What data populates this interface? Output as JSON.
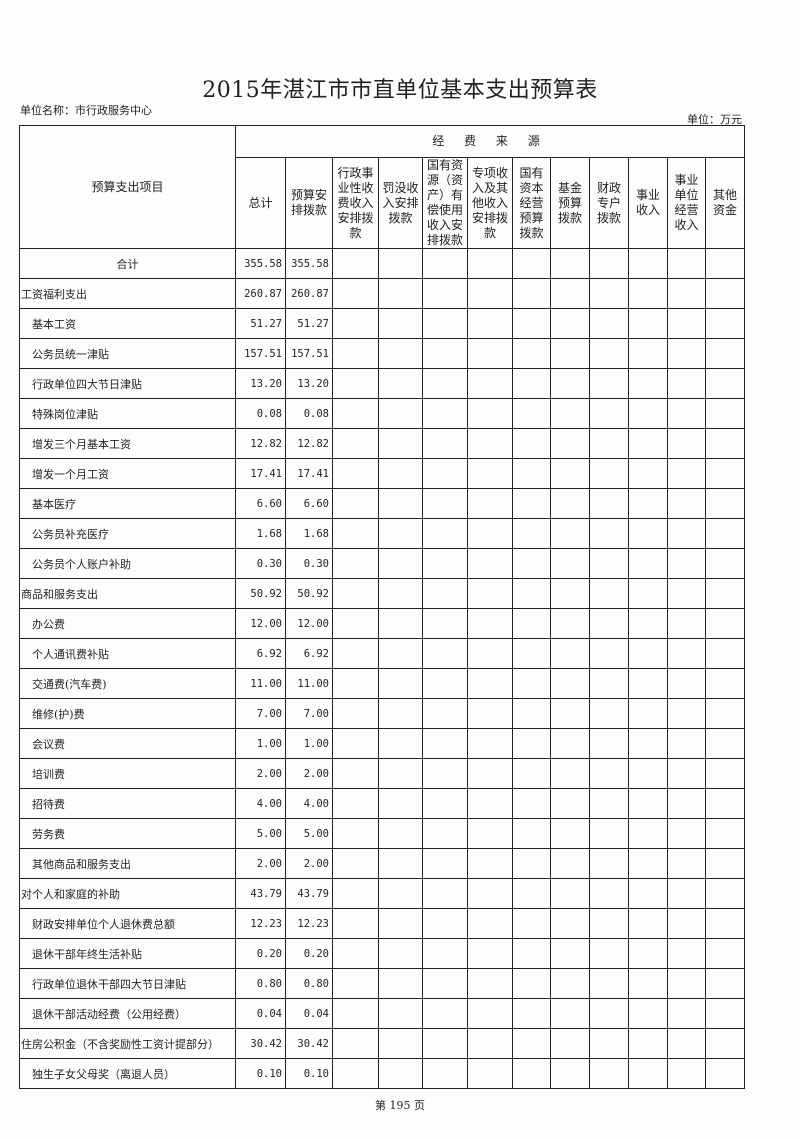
{
  "title": "2015年湛江市市直单位基本支出预算表",
  "unit_name": "单位名称：市行政服务中心",
  "unit": "单位：万元",
  "header": {
    "item": "预算支出项目",
    "group": "经 费 来 源",
    "columns": [
      "总计",
      "预算安排拨款",
      "行政事业性收费收入安排拨款",
      "罚没收入安排拨款",
      "国有资源（资产）有偿使用收入安排拨款",
      "专项收入及其他收入安排拨款",
      "国有资本经营预算拨款",
      "基金预算拨款",
      "财政专户拨款",
      "事业收入",
      "事业单位经营收入",
      "其他资金"
    ]
  },
  "rows": [
    {
      "name": "合计",
      "level": "center",
      "total": "355.58",
      "budget": "355.58"
    },
    {
      "name": "工资福利支出",
      "level": 0,
      "total": "260.87",
      "budget": "260.87"
    },
    {
      "name": "基本工资",
      "level": 1,
      "total": "51.27",
      "budget": "51.27"
    },
    {
      "name": "公务员统一津贴",
      "level": 1,
      "total": "157.51",
      "budget": "157.51"
    },
    {
      "name": "行政单位四大节日津贴",
      "level": 1,
      "total": "13.20",
      "budget": "13.20"
    },
    {
      "name": "特殊岗位津贴",
      "level": 1,
      "total": "0.08",
      "budget": "0.08"
    },
    {
      "name": "增发三个月基本工资",
      "level": 1,
      "total": "12.82",
      "budget": "12.82"
    },
    {
      "name": "增发一个月工资",
      "level": 1,
      "total": "17.41",
      "budget": "17.41"
    },
    {
      "name": "基本医疗",
      "level": 1,
      "total": "6.60",
      "budget": "6.60"
    },
    {
      "name": "公务员补充医疗",
      "level": 1,
      "total": "1.68",
      "budget": "1.68"
    },
    {
      "name": "公务员个人账户补助",
      "level": 1,
      "total": "0.30",
      "budget": "0.30"
    },
    {
      "name": "商品和服务支出",
      "level": 0,
      "total": "50.92",
      "budget": "50.92"
    },
    {
      "name": "办公费",
      "level": 1,
      "total": "12.00",
      "budget": "12.00"
    },
    {
      "name": "个人通讯费补贴",
      "level": 1,
      "total": "6.92",
      "budget": "6.92"
    },
    {
      "name": "交通费(汽车费)",
      "level": 1,
      "total": "11.00",
      "budget": "11.00"
    },
    {
      "name": "维修(护)费",
      "level": 1,
      "total": "7.00",
      "budget": "7.00"
    },
    {
      "name": "会议费",
      "level": 1,
      "total": "1.00",
      "budget": "1.00"
    },
    {
      "name": "培训费",
      "level": 1,
      "total": "2.00",
      "budget": "2.00"
    },
    {
      "name": "招待费",
      "level": 1,
      "total": "4.00",
      "budget": "4.00"
    },
    {
      "name": "劳务费",
      "level": 1,
      "total": "5.00",
      "budget": "5.00"
    },
    {
      "name": "其他商品和服务支出",
      "level": 1,
      "total": "2.00",
      "budget": "2.00"
    },
    {
      "name": "对个人和家庭的补助",
      "level": 0,
      "total": "43.79",
      "budget": "43.79"
    },
    {
      "name": "财政安排单位个人退休费总额",
      "level": 1,
      "total": "12.23",
      "budget": "12.23"
    },
    {
      "name": "退休干部年终生活补贴",
      "level": 1,
      "total": "0.20",
      "budget": "0.20"
    },
    {
      "name": "行政单位退休干部四大节日津贴",
      "level": 1,
      "total": "0.80",
      "budget": "0.80"
    },
    {
      "name": "退休干部活动经费（公用经费）",
      "level": 1,
      "total": "0.04",
      "budget": "0.04"
    },
    {
      "name": "住房公积金（不含奖励性工资计提部分）",
      "level": 0,
      "total": "30.42",
      "budget": "30.42"
    },
    {
      "name": "独生子女父母奖（离退人员）",
      "level": 1,
      "total": "0.10",
      "budget": "0.10"
    }
  ],
  "footer": "第 195 页"
}
